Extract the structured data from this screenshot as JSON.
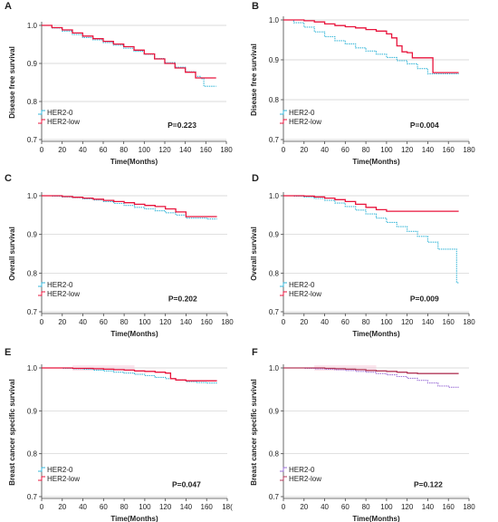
{
  "figure": {
    "colors": {
      "her2_0": "#35b6d8",
      "her2_low": "#e8143c",
      "her2_0_F": "#9a6fd6",
      "her2_low_F": "#b33a5a",
      "band": "#f7c6d8"
    }
  },
  "chart_data": [
    {
      "panel": "A",
      "type": "line",
      "title": "",
      "xlabel": "Time(Months)",
      "ylabel": "Disease free survival",
      "xlim": [
        0,
        180
      ],
      "ylim": [
        0.7,
        1.0
      ],
      "xticks": [
        "0",
        "20",
        "40",
        "60",
        "80",
        "100",
        "120",
        "140",
        "160",
        "180"
      ],
      "yticks": [
        "0.7",
        "0.8",
        "0.9",
        "1.0"
      ],
      "pvalue": "P=0.223",
      "series": [
        {
          "name": "HER2-0",
          "x": [
            0,
            10,
            20,
            30,
            40,
            50,
            60,
            70,
            80,
            90,
            100,
            110,
            120,
            130,
            140,
            150,
            155,
            158,
            160,
            170
          ],
          "y": [
            1.0,
            0.993,
            0.985,
            0.976,
            0.968,
            0.962,
            0.955,
            0.948,
            0.94,
            0.932,
            0.924,
            0.913,
            0.902,
            0.89,
            0.878,
            0.866,
            0.86,
            0.84,
            0.84,
            0.84
          ]
        },
        {
          "name": "HER2-low",
          "x": [
            0,
            10,
            20,
            30,
            40,
            50,
            60,
            70,
            80,
            90,
            100,
            110,
            120,
            130,
            140,
            150,
            160,
            170
          ],
          "y": [
            1.0,
            0.994,
            0.988,
            0.98,
            0.972,
            0.965,
            0.958,
            0.951,
            0.944,
            0.935,
            0.925,
            0.912,
            0.9,
            0.888,
            0.877,
            0.862,
            0.862,
            0.862
          ]
        }
      ]
    },
    {
      "panel": "B",
      "type": "line",
      "title": "",
      "xlabel": "Time(Months)",
      "ylabel": "Disease free survival",
      "xlim": [
        0,
        180
      ],
      "ylim": [
        0.7,
        1.0
      ],
      "xticks": [
        "0",
        "20",
        "40",
        "60",
        "80",
        "100",
        "120",
        "140",
        "160",
        "180"
      ],
      "yticks": [
        "0.7",
        "0.8",
        "0.9",
        "1.0"
      ],
      "pvalue": "P=0.004",
      "series": [
        {
          "name": "HER2-0",
          "x": [
            0,
            10,
            20,
            30,
            40,
            50,
            60,
            70,
            80,
            90,
            100,
            110,
            120,
            130,
            140,
            150,
            160,
            170
          ],
          "y": [
            1.0,
            0.993,
            0.982,
            0.97,
            0.958,
            0.948,
            0.94,
            0.93,
            0.922,
            0.914,
            0.906,
            0.898,
            0.89,
            0.878,
            0.865,
            0.865,
            0.865,
            0.865
          ]
        },
        {
          "name": "HER2-low",
          "x": [
            0,
            10,
            20,
            30,
            40,
            50,
            60,
            70,
            80,
            90,
            100,
            105,
            110,
            115,
            120,
            125,
            130,
            140,
            145,
            150,
            160,
            170
          ],
          "y": [
            1.0,
            1.0,
            0.998,
            0.995,
            0.99,
            0.986,
            0.983,
            0.98,
            0.976,
            0.972,
            0.965,
            0.955,
            0.935,
            0.92,
            0.918,
            0.905,
            0.905,
            0.905,
            0.868,
            0.868,
            0.868,
            0.868
          ]
        }
      ]
    },
    {
      "panel": "C",
      "type": "line",
      "title": "",
      "xlabel": "Time(Months)",
      "ylabel": "Overall survival",
      "xlim": [
        0,
        180
      ],
      "ylim": [
        0.7,
        1.0
      ],
      "xticks": [
        "0",
        "20",
        "40",
        "60",
        "80",
        "100",
        "120",
        "140",
        "160",
        "180"
      ],
      "yticks": [
        "0.7",
        "0.8",
        "0.9",
        "1.0"
      ],
      "pvalue": "P=0.202",
      "series": [
        {
          "name": "HER2-0",
          "x": [
            0,
            10,
            20,
            30,
            40,
            50,
            60,
            70,
            80,
            90,
            100,
            110,
            120,
            130,
            140,
            150,
            160,
            170
          ],
          "y": [
            1.0,
            0.999,
            0.997,
            0.995,
            0.992,
            0.989,
            0.985,
            0.98,
            0.975,
            0.97,
            0.966,
            0.961,
            0.956,
            0.95,
            0.942,
            0.942,
            0.94,
            0.94
          ]
        },
        {
          "name": "HER2-low",
          "x": [
            0,
            10,
            20,
            30,
            40,
            50,
            60,
            70,
            80,
            90,
            100,
            110,
            120,
            130,
            140,
            150,
            160,
            170
          ],
          "y": [
            1.0,
            1.0,
            0.998,
            0.996,
            0.994,
            0.991,
            0.988,
            0.985,
            0.982,
            0.978,
            0.975,
            0.972,
            0.966,
            0.958,
            0.946,
            0.946,
            0.946,
            0.946
          ]
        }
      ]
    },
    {
      "panel": "D",
      "type": "line",
      "title": "",
      "xlabel": "Time(Months)",
      "ylabel": "Overall survival",
      "xlim": [
        0,
        180
      ],
      "ylim": [
        0.7,
        1.0
      ],
      "xticks": [
        "0",
        "20",
        "40",
        "60",
        "80",
        "100",
        "120",
        "140",
        "160",
        "180"
      ],
      "yticks": [
        "0.7",
        "0.8",
        "0.9",
        "1.0"
      ],
      "pvalue": "P=0.009",
      "series": [
        {
          "name": "HER2-0",
          "x": [
            0,
            10,
            20,
            30,
            40,
            50,
            60,
            70,
            80,
            90,
            100,
            110,
            120,
            130,
            140,
            150,
            160,
            165,
            168,
            170
          ],
          "y": [
            1.0,
            0.999,
            0.997,
            0.993,
            0.988,
            0.981,
            0.972,
            0.963,
            0.953,
            0.942,
            0.931,
            0.92,
            0.908,
            0.895,
            0.88,
            0.862,
            0.862,
            0.862,
            0.775,
            0.775
          ]
        },
        {
          "name": "HER2-low",
          "x": [
            0,
            10,
            20,
            30,
            40,
            50,
            60,
            70,
            80,
            90,
            100,
            110,
            120,
            130,
            140,
            150,
            160,
            170
          ],
          "y": [
            1.0,
            1.0,
            0.999,
            0.997,
            0.994,
            0.99,
            0.985,
            0.978,
            0.97,
            0.964,
            0.96,
            0.96,
            0.96,
            0.96,
            0.96,
            0.96,
            0.96,
            0.96
          ]
        }
      ]
    },
    {
      "panel": "E",
      "type": "line",
      "title": "",
      "xlabel": "Time(Months)",
      "ylabel": "Breast cancer specific survival",
      "xlim": [
        0,
        180
      ],
      "ylim": [
        0.7,
        1.0
      ],
      "xticks": [
        "0",
        "20",
        "40",
        "60",
        "80",
        "100",
        "120",
        "140",
        "160",
        "18("
      ],
      "yticks": [
        "0.7",
        "0.8",
        "0.9",
        "1.0"
      ],
      "pvalue": "P=0.047",
      "series": [
        {
          "name": "HER2-0",
          "x": [
            0,
            10,
            20,
            30,
            40,
            50,
            60,
            70,
            80,
            90,
            100,
            110,
            120,
            130,
            140,
            150,
            160,
            170
          ],
          "y": [
            1.0,
            1.0,
            0.999,
            0.998,
            0.997,
            0.995,
            0.993,
            0.99,
            0.988,
            0.985,
            0.982,
            0.978,
            0.975,
            0.972,
            0.968,
            0.966,
            0.965,
            0.965
          ]
        },
        {
          "name": "HER2-low",
          "x": [
            0,
            10,
            20,
            30,
            40,
            50,
            60,
            70,
            80,
            90,
            100,
            110,
            120,
            125,
            130,
            140,
            150,
            160,
            170
          ],
          "y": [
            1.0,
            1.0,
            1.0,
            0.999,
            0.999,
            0.998,
            0.997,
            0.996,
            0.995,
            0.993,
            0.992,
            0.99,
            0.988,
            0.975,
            0.972,
            0.97,
            0.97,
            0.97,
            0.97
          ]
        }
      ]
    },
    {
      "panel": "F",
      "type": "line",
      "title": "",
      "xlabel": "Time(Months)",
      "ylabel": "Breast cancer specific survival",
      "xlim": [
        0,
        180
      ],
      "ylim": [
        0.7,
        1.0
      ],
      "xticks": [
        "0",
        "20",
        "40",
        "60",
        "80",
        "100",
        "120",
        "140",
        "160",
        "180"
      ],
      "yticks": [
        "0.7",
        "0.8",
        "0.9",
        "1.0"
      ],
      "pvalue": "P=0.122",
      "series": [
        {
          "name": "HER2-0",
          "x": [
            0,
            10,
            20,
            30,
            40,
            50,
            60,
            70,
            80,
            90,
            100,
            110,
            120,
            130,
            140,
            150,
            160,
            170
          ],
          "y": [
            1.0,
            1.0,
            0.999,
            0.998,
            0.997,
            0.996,
            0.994,
            0.992,
            0.99,
            0.987,
            0.984,
            0.98,
            0.976,
            0.971,
            0.965,
            0.958,
            0.955,
            0.955
          ]
        },
        {
          "name": "HER2-low",
          "x": [
            0,
            10,
            20,
            30,
            40,
            50,
            60,
            70,
            80,
            90,
            100,
            110,
            120,
            130,
            140,
            150,
            160,
            170
          ],
          "y": [
            1.0,
            1.0,
            1.0,
            1.0,
            0.999,
            0.998,
            0.997,
            0.996,
            0.994,
            0.993,
            0.992,
            0.99,
            0.988,
            0.987,
            0.987,
            0.987,
            0.987,
            0.987
          ]
        }
      ]
    }
  ]
}
